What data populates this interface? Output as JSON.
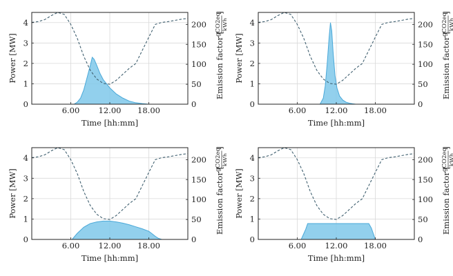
{
  "figure": {
    "panels": 4
  },
  "chart_data": [
    {
      "type": "area",
      "xlabel": "Time [hh:mm]",
      "ylabel": "Power [MW]",
      "y2label": "Emission factor [gCO2eq / kWh]",
      "xlim": [
        0,
        24
      ],
      "ylim": [
        0,
        4.5
      ],
      "y2lim": [
        0,
        230
      ],
      "xticks": [
        6,
        12,
        18
      ],
      "xticklabels": [
        "6.00",
        "12.00",
        "18.00"
      ],
      "yticks": [
        0,
        1,
        2,
        3,
        4
      ],
      "y2ticks": [
        0,
        50,
        100,
        150,
        200
      ],
      "grid": true,
      "colors": {
        "power_fill": "#7fc8ea",
        "power_line": "#4aa8d8",
        "emission_line": "#3f5f6f"
      },
      "series": [
        {
          "style": "filled-area",
          "axis": "left",
          "x": [
            6.5,
            7.0,
            7.5,
            8.0,
            8.5,
            9.0,
            9.3,
            9.6,
            10.0,
            10.5,
            11.0,
            11.5,
            12.0,
            13.0,
            14.0,
            15.0,
            16.0,
            17.0,
            18.0
          ],
          "values": [
            0,
            0.1,
            0.3,
            0.7,
            1.3,
            1.9,
            2.3,
            2.2,
            1.9,
            1.5,
            1.2,
            1.0,
            0.8,
            0.5,
            0.3,
            0.15,
            0.07,
            0.03,
            0
          ]
        },
        {
          "style": "dashed-line",
          "axis": "right",
          "x": [
            0,
            1,
            2,
            3,
            4,
            5,
            6,
            7,
            8,
            9,
            10,
            11,
            12,
            13,
            14,
            15,
            16,
            17,
            18,
            19,
            20,
            21,
            22,
            23,
            24
          ],
          "values": [
            205,
            207,
            212,
            222,
            230,
            225,
            200,
            165,
            120,
            85,
            63,
            52,
            50,
            60,
            75,
            90,
            102,
            135,
            168,
            200,
            205,
            207,
            210,
            213,
            215
          ]
        }
      ]
    },
    {
      "type": "area",
      "xlabel": "Time [hh:mm]",
      "ylabel": "Power [MW]",
      "y2label": "Emission factor [gCO2eq / kWh]",
      "xlim": [
        0,
        24
      ],
      "ylim": [
        0,
        4.5
      ],
      "y2lim": [
        0,
        230
      ],
      "xticks": [
        6,
        12,
        18
      ],
      "xticklabels": [
        "6.00",
        "12.00",
        "18.00"
      ],
      "yticks": [
        0,
        1,
        2,
        3,
        4
      ],
      "y2ticks": [
        0,
        50,
        100,
        150,
        200
      ],
      "grid": true,
      "colors": {
        "power_fill": "#7fc8ea",
        "power_line": "#4aa8d8",
        "emission_line": "#3f5f6f"
      },
      "series": [
        {
          "style": "filled-area",
          "axis": "left",
          "x": [
            9.5,
            10.0,
            10.3,
            10.6,
            10.9,
            11.1,
            11.3,
            11.5,
            11.8,
            12.1,
            12.5,
            13.0,
            13.5,
            14.0,
            14.5,
            15.0
          ],
          "values": [
            0,
            0.3,
            0.9,
            2.0,
            3.3,
            4.0,
            3.6,
            2.6,
            1.4,
            0.8,
            0.4,
            0.2,
            0.1,
            0.05,
            0.02,
            0
          ]
        },
        {
          "style": "dashed-line",
          "axis": "right",
          "x": [
            0,
            1,
            2,
            3,
            4,
            5,
            6,
            7,
            8,
            9,
            10,
            11,
            12,
            13,
            14,
            15,
            16,
            17,
            18,
            19,
            20,
            21,
            22,
            23,
            24
          ],
          "values": [
            205,
            207,
            212,
            222,
            230,
            225,
            200,
            165,
            120,
            85,
            63,
            52,
            50,
            60,
            75,
            90,
            102,
            135,
            168,
            200,
            205,
            207,
            210,
            213,
            215
          ]
        }
      ]
    },
    {
      "type": "area",
      "xlabel": "Time [hh:mm]",
      "ylabel": "Power [MW]",
      "y2label": "Emission factor [gCO2eq / kWh]",
      "xlim": [
        0,
        24
      ],
      "ylim": [
        0,
        4.5
      ],
      "y2lim": [
        0,
        230
      ],
      "xticks": [
        6,
        12,
        18
      ],
      "xticklabels": [
        "6.00",
        "12.00",
        "18.00"
      ],
      "yticks": [
        0,
        1,
        2,
        3,
        4
      ],
      "y2ticks": [
        0,
        50,
        100,
        150,
        200
      ],
      "grid": true,
      "colors": {
        "power_fill": "#7fc8ea",
        "power_line": "#4aa8d8",
        "emission_line": "#3f5f6f"
      },
      "series": [
        {
          "style": "filled-area",
          "axis": "left",
          "x": [
            6.2,
            7.0,
            8.0,
            9.0,
            10.0,
            11.0,
            12.0,
            13.0,
            14.0,
            15.0,
            16.0,
            17.0,
            18.0,
            18.5,
            19.0,
            19.5,
            20.0
          ],
          "values": [
            0,
            0.3,
            0.6,
            0.78,
            0.86,
            0.9,
            0.9,
            0.86,
            0.8,
            0.72,
            0.62,
            0.52,
            0.4,
            0.28,
            0.15,
            0.05,
            0
          ]
        },
        {
          "style": "dashed-line",
          "axis": "right",
          "x": [
            0,
            1,
            2,
            3,
            4,
            5,
            6,
            7,
            8,
            9,
            10,
            11,
            12,
            13,
            14,
            15,
            16,
            17,
            18,
            19,
            20,
            21,
            22,
            23,
            24
          ],
          "values": [
            205,
            207,
            212,
            222,
            230,
            225,
            200,
            165,
            120,
            85,
            63,
            52,
            50,
            60,
            75,
            90,
            102,
            135,
            168,
            200,
            205,
            207,
            210,
            213,
            215
          ]
        }
      ]
    },
    {
      "type": "area",
      "xlabel": "Time [hh:mm]",
      "ylabel": "Power [MW]",
      "y2label": "Emission factor [gCO2eq / kWh]",
      "xlim": [
        0,
        24
      ],
      "ylim": [
        0,
        4.5
      ],
      "y2lim": [
        0,
        230
      ],
      "xticks": [
        6,
        12,
        18
      ],
      "xticklabels": [
        "6.00",
        "12.00",
        "18.00"
      ],
      "yticks": [
        0,
        1,
        2,
        3,
        4
      ],
      "y2ticks": [
        0,
        50,
        100,
        150,
        200
      ],
      "grid": true,
      "colors": {
        "power_fill": "#7fc8ea",
        "power_line": "#4aa8d8",
        "emission_line": "#3f5f6f"
      },
      "series": [
        {
          "style": "filled-area",
          "axis": "left",
          "x": [
            6.6,
            7.3,
            7.6,
            17.0,
            17.4,
            18.0
          ],
          "values": [
            0,
            0.5,
            0.78,
            0.78,
            0.55,
            0
          ]
        },
        {
          "style": "dashed-line",
          "axis": "right",
          "x": [
            0,
            1,
            2,
            3,
            4,
            5,
            6,
            7,
            8,
            9,
            10,
            11,
            12,
            13,
            14,
            15,
            16,
            17,
            18,
            19,
            20,
            21,
            22,
            23,
            24
          ],
          "values": [
            205,
            207,
            212,
            222,
            230,
            225,
            200,
            165,
            120,
            85,
            63,
            52,
            50,
            60,
            75,
            90,
            102,
            135,
            168,
            200,
            205,
            207,
            210,
            213,
            215
          ]
        }
      ]
    }
  ]
}
